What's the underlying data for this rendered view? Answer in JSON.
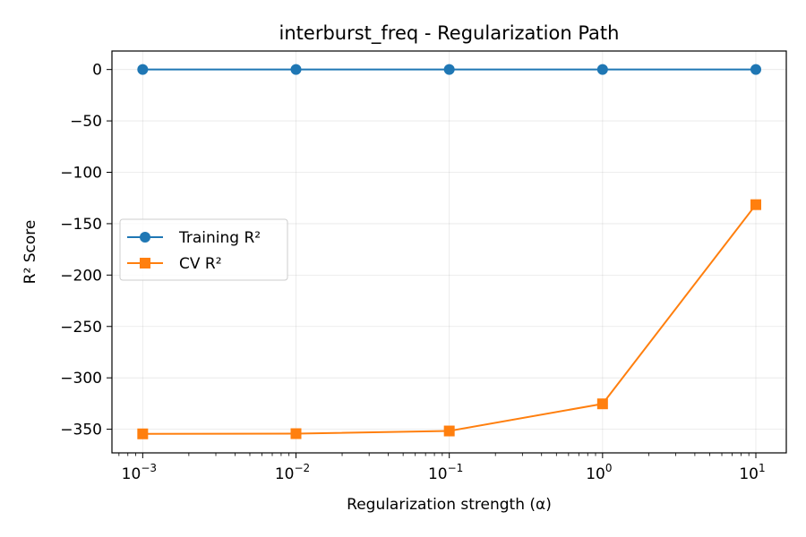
{
  "chart_data": {
    "type": "line",
    "title": "interburst_freq - Regularization Path",
    "xlabel": "Regularization strength (α)",
    "ylabel": "R² Score",
    "xscale": "log",
    "x": [
      0.001,
      0.01,
      0.1,
      1,
      10
    ],
    "xlim": [
      0.00063,
      15.8
    ],
    "ylim": [
      -373,
      18
    ],
    "x_ticks": [
      {
        "value": 0.001,
        "base": "10",
        "exp": "−3"
      },
      {
        "value": 0.01,
        "base": "10",
        "exp": "−2"
      },
      {
        "value": 0.1,
        "base": "10",
        "exp": "−1"
      },
      {
        "value": 1,
        "base": "10",
        "exp": "0"
      },
      {
        "value": 10,
        "base": "10",
        "exp": "1"
      }
    ],
    "y_ticks": [
      {
        "value": 0,
        "label": "0"
      },
      {
        "value": -50,
        "label": "−50"
      },
      {
        "value": -100,
        "label": "−100"
      },
      {
        "value": -150,
        "label": "−150"
      },
      {
        "value": -200,
        "label": "−200"
      },
      {
        "value": -250,
        "label": "−250"
      },
      {
        "value": -300,
        "label": "−300"
      },
      {
        "value": -350,
        "label": "−350"
      }
    ],
    "grid": true,
    "legend": {
      "placement": "center-left"
    },
    "series": [
      {
        "name": "Training R²",
        "color": "#1f77b4",
        "marker": "circle",
        "values": [
          0,
          0,
          0,
          0,
          0
        ]
      },
      {
        "name": "CV R²",
        "color": "#ff7f0e",
        "marker": "square",
        "values": [
          -354.5,
          -354.3,
          -351.7,
          -325.3,
          -131.5
        ]
      }
    ]
  }
}
